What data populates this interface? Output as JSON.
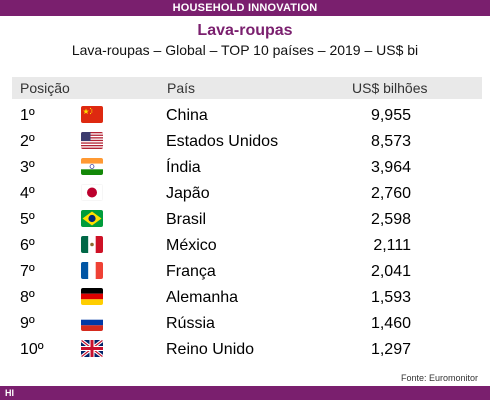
{
  "brand_bar": "HOUSEHOLD INNOVATION",
  "title": "Lava-roupas",
  "subtitle": "Lava-roupas – Global – TOP 10 países – 2019 – US$ bi",
  "columns": {
    "position": "Posição",
    "country": "País",
    "value": "US$ bilhões"
  },
  "rows": [
    {
      "position": "1º",
      "flag": "china-flag-icon",
      "country": "China",
      "value": "9,955"
    },
    {
      "position": "2º",
      "flag": "usa-flag-icon",
      "country": "Estados Unidos",
      "value": "8,573"
    },
    {
      "position": "3º",
      "flag": "india-flag-icon",
      "country": "Índia",
      "value": "3,964"
    },
    {
      "position": "4º",
      "flag": "japan-flag-icon",
      "country": "Japão",
      "value": "2,760"
    },
    {
      "position": "5º",
      "flag": "brazil-flag-icon",
      "country": "Brasil",
      "value": "2,598"
    },
    {
      "position": "6º",
      "flag": "mexico-flag-icon",
      "country": "México",
      "value": "2,111"
    },
    {
      "position": "7º",
      "flag": "france-flag-icon",
      "country": "França",
      "value": "2,041"
    },
    {
      "position": "8º",
      "flag": "germany-flag-icon",
      "country": "Alemanha",
      "value": "1,593"
    },
    {
      "position": "9º",
      "flag": "russia-flag-icon",
      "country": "Rússia",
      "value": "1,460"
    },
    {
      "position": "10º",
      "flag": "uk-flag-icon",
      "country": "Reino Unido",
      "value": "1,297"
    }
  ],
  "source": "Fonte: Euromonitor",
  "footer_logo": "HI",
  "colors": {
    "brand": "#7a1f6e",
    "header_bg": "#e9e9e9"
  }
}
